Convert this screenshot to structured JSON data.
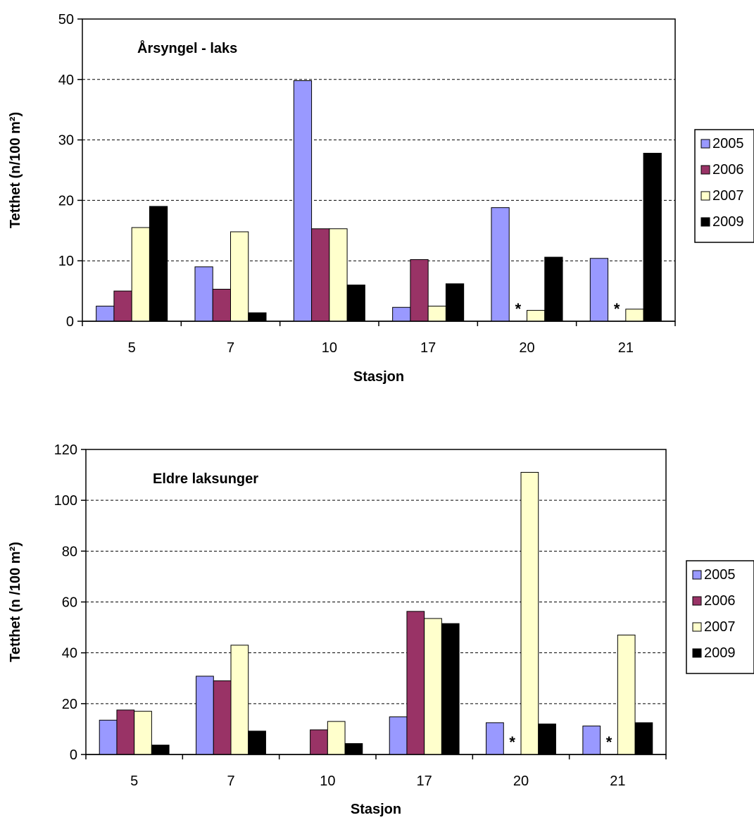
{
  "chart_data": [
    {
      "type": "bar",
      "title": "Årsyngel - laks",
      "xlabel": "Stasjon",
      "ylabel": "Tetthet (n/100 m²)",
      "categories": [
        "5",
        "7",
        "10",
        "17",
        "20",
        "21"
      ],
      "ylim": [
        0,
        50
      ],
      "yticks": [
        "0",
        "10",
        "20",
        "30",
        "40",
        "50"
      ],
      "grid": "horizontal dashed",
      "legend_position": "right",
      "series": [
        {
          "name": "2005",
          "color": "#9999ff",
          "values": [
            2.5,
            9,
            39.8,
            2.3,
            18.8,
            10.4
          ]
        },
        {
          "name": "2006",
          "color": "#993366",
          "values": [
            5,
            5.3,
            15.3,
            10.2,
            null,
            null
          ]
        },
        {
          "name": "2007",
          "color": "#ffffcc",
          "values": [
            15.5,
            14.8,
            15.3,
            2.5,
            1.8,
            2
          ]
        },
        {
          "name": "2009",
          "color": "#000000",
          "values": [
            19,
            1.4,
            6,
            6.2,
            10.6,
            27.8
          ]
        }
      ],
      "annotations": [
        {
          "category": "20",
          "series": "2006",
          "text": "*"
        },
        {
          "category": "21",
          "series": "2006",
          "text": "*"
        }
      ]
    },
    {
      "type": "bar",
      "title": "Eldre laksunger",
      "xlabel": "Stasjon",
      "ylabel": "Tetthet (n /100 m²)",
      "categories": [
        "5",
        "7",
        "10",
        "17",
        "20",
        "21"
      ],
      "ylim": [
        0,
        120
      ],
      "yticks": [
        "0",
        "20",
        "40",
        "60",
        "80",
        "100",
        "120"
      ],
      "grid": "horizontal dashed",
      "legend_position": "right",
      "series": [
        {
          "name": "2005",
          "color": "#9999ff",
          "values": [
            13.5,
            30.8,
            null,
            14.8,
            12.5,
            11.2
          ]
        },
        {
          "name": "2006",
          "color": "#993366",
          "values": [
            17.5,
            29,
            9.7,
            56.3,
            null,
            null
          ]
        },
        {
          "name": "2007",
          "color": "#ffffcc",
          "values": [
            17,
            43,
            13,
            53.5,
            111,
            47
          ]
        },
        {
          "name": "2009",
          "color": "#000000",
          "values": [
            3.7,
            9.2,
            4.3,
            51.5,
            12,
            12.5
          ]
        }
      ],
      "annotations": [
        {
          "category": "20",
          "series": "2006",
          "text": "*"
        },
        {
          "category": "21",
          "series": "2006",
          "text": "*"
        }
      ]
    }
  ]
}
